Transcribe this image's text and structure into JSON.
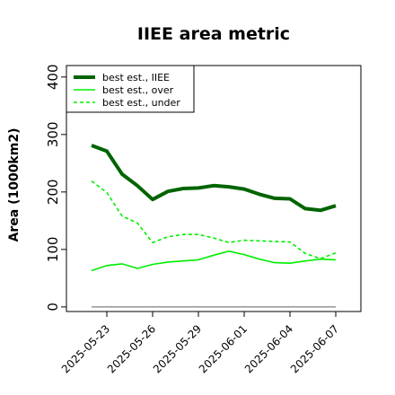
{
  "chart_data": {
    "type": "line",
    "title": "IIEE area metric",
    "xlabel": "",
    "ylabel": "Area (1000km2)",
    "x": [
      "2025-05-22",
      "2025-05-23",
      "2025-05-24",
      "2025-05-25",
      "2025-05-26",
      "2025-05-27",
      "2025-05-28",
      "2025-05-29",
      "2025-05-30",
      "2025-05-31",
      "2025-06-01",
      "2025-06-02",
      "2025-06-03",
      "2025-06-04",
      "2025-06-05",
      "2025-06-06",
      "2025-06-07"
    ],
    "xtick_labels": [
      "2025-05-23",
      "2025-05-26",
      "2025-05-29",
      "2025-06-01",
      "2025-06-04",
      "2025-06-07"
    ],
    "ylim": [
      -8,
      420
    ],
    "yticks": [
      0,
      100,
      200,
      300,
      400
    ],
    "reference_line": 0,
    "legend_position": "top-left",
    "grid": false,
    "series": [
      {
        "name": "best est., IIEE",
        "color": "#006400",
        "style": "solid",
        "width": "thick",
        "values": [
          281,
          271,
          231,
          211,
          187,
          201,
          206,
          207,
          211,
          209,
          205,
          196,
          189,
          188,
          171,
          168,
          176
        ]
      },
      {
        "name": "best est., over",
        "color": "#00ee00",
        "style": "solid",
        "width": "thin",
        "values": [
          63,
          72,
          75,
          67,
          74,
          78,
          80,
          82,
          90,
          97,
          91,
          83,
          77,
          76,
          80,
          83,
          82
        ]
      },
      {
        "name": "best est., under",
        "color": "#00ee00",
        "style": "dashed",
        "width": "thin",
        "values": [
          219,
          199,
          158,
          146,
          112,
          122,
          126,
          126,
          120,
          112,
          116,
          115,
          114,
          113,
          93,
          84,
          94
        ]
      }
    ]
  }
}
